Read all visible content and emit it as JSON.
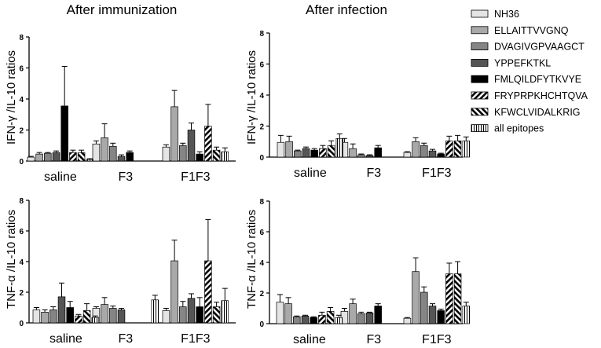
{
  "figure": {
    "col_titles": [
      "After immunization",
      "After infection"
    ],
    "ylabel_ifn": "IFN-γ /IL-10 ratios",
    "ylabel_tnf": "TNF-α /IL-10 ratios"
  },
  "legend": {
    "position": "right",
    "entries": [
      {
        "label": "NH36",
        "pattern": "light"
      },
      {
        "label": "ELLAITTVVGNQ",
        "pattern": "mid"
      },
      {
        "label": "DVAGIVGPVAAGCT",
        "pattern": "gray"
      },
      {
        "label": "YPPEFKTKL",
        "pattern": "dark"
      },
      {
        "label": "FMLQILDFYTKVYE",
        "pattern": "black"
      },
      {
        "label": "FRYPRPKHCHTQVA",
        "pattern": "diag"
      },
      {
        "label": "KFWCLVIDALKRIG",
        "pattern": "diag2"
      },
      {
        "label": "all epitopes",
        "pattern": "vert"
      }
    ]
  },
  "chart_data": [
    {
      "type": "bar",
      "panel": "A",
      "title": "After immunization",
      "ylabel": "IFN-γ /IL-10 ratios",
      "xlabel": "",
      "ylim": [
        0,
        8
      ],
      "yticks": [
        0,
        2,
        4,
        6,
        8
      ],
      "groups": [
        "saline",
        "F3",
        "F1F3"
      ],
      "series": [
        {
          "name": "NH36",
          "values": [
            0.25,
            1.1,
            0.9
          ],
          "errors": [
            0.05,
            0.2,
            0.15
          ]
        },
        {
          "name": "ELLAITTVVGNQ",
          "values": [
            0.45,
            1.5,
            3.5
          ],
          "errors": [
            0.1,
            0.9,
            1.05
          ]
        },
        {
          "name": "DVAGIVGPVAAGCT",
          "values": [
            0.5,
            0.95,
            1.0
          ],
          "errors": [
            0.05,
            0.2,
            0.15
          ]
        },
        {
          "name": "YPPEFKTKL",
          "values": [
            0.55,
            0.3,
            2.0
          ],
          "errors": [
            0.1,
            0.1,
            0.45
          ]
        },
        {
          "name": "FMLQILDFYTKVYE",
          "values": [
            3.55,
            0.55,
            0.45
          ],
          "errors": [
            2.55,
            0.1,
            0.15
          ]
        },
        {
          "name": "FRYPRPKHCHTQVA",
          "values": [
            0.55,
            0,
            2.25
          ],
          "errors": [
            0.15,
            0,
            1.4
          ]
        },
        {
          "name": "KFWCLVIDALKRIG",
          "values": [
            0.55,
            0,
            0.7
          ],
          "errors": [
            0.15,
            0,
            0.2
          ]
        },
        {
          "name": "all epitopes",
          "values": [
            0.1,
            0,
            0.6
          ],
          "errors": [
            0.05,
            0,
            0.25
          ]
        }
      ]
    },
    {
      "type": "bar",
      "panel": "B",
      "title": "After infection",
      "ylabel": "IFN-γ /IL-10 ratios",
      "xlabel": "",
      "ylim": [
        0,
        8
      ],
      "yticks": [
        0,
        2,
        4,
        6,
        8
      ],
      "groups": [
        "saline",
        "F3",
        "F1F3"
      ],
      "series": [
        {
          "name": "NH36",
          "values": [
            0.95,
            0.95,
            0.3
          ],
          "errors": [
            0.45,
            0.25,
            0.05
          ]
        },
        {
          "name": "ELLAITTVVGNQ",
          "values": [
            1.0,
            0.55,
            1.0
          ],
          "errors": [
            0.35,
            0.3,
            0.25
          ]
        },
        {
          "name": "DVAGIVGPVAAGCT",
          "values": [
            0.4,
            0.15,
            0.75
          ],
          "errors": [
            0.05,
            0.05,
            0.15
          ]
        },
        {
          "name": "YPPEFKTKL",
          "values": [
            0.55,
            0.1,
            0.4
          ],
          "errors": [
            0.1,
            0.05,
            0.1
          ]
        },
        {
          "name": "FMLQILDFYTKVYE",
          "values": [
            0.45,
            0.6,
            0.2
          ],
          "errors": [
            0.1,
            0.15,
            0.05
          ]
        },
        {
          "name": "FRYPRPKHCHTQVA",
          "values": [
            0.55,
            0,
            1.05
          ],
          "errors": [
            0.2,
            0,
            0.3
          ]
        },
        {
          "name": "KFWCLVIDALKRIG",
          "values": [
            0.75,
            0,
            1.05
          ],
          "errors": [
            0.3,
            0,
            0.35
          ]
        },
        {
          "name": "all epitopes",
          "values": [
            1.2,
            0,
            1.05
          ],
          "errors": [
            0.3,
            0,
            0.25
          ]
        }
      ]
    },
    {
      "type": "bar",
      "panel": "C",
      "title": "",
      "ylabel": "TNF-α /IL-10 ratios",
      "xlabel": "",
      "ylim": [
        0,
        8
      ],
      "yticks": [
        0,
        2,
        4,
        6,
        8
      ],
      "groups": [
        "saline",
        "F3",
        "F1F3"
      ],
      "series": [
        {
          "name": "NH36",
          "values": [
            0.85,
            0.95,
            0.8
          ],
          "errors": [
            0.15,
            0.1,
            0.15
          ]
        },
        {
          "name": "ELLAITTVVGNQ",
          "values": [
            0.7,
            1.2,
            4.05
          ],
          "errors": [
            0.15,
            0.45,
            1.35
          ]
        },
        {
          "name": "DVAGIVGPVAAGCT",
          "values": [
            0.85,
            0.95,
            1.05
          ],
          "errors": [
            0.2,
            0.15,
            0.35
          ]
        },
        {
          "name": "YPPEFKTKL",
          "values": [
            1.7,
            0.85,
            1.6
          ],
          "errors": [
            0.9,
            0.1,
            0.3
          ]
        },
        {
          "name": "FMLQILDFYTKVYE",
          "values": [
            1.0,
            0,
            1.05
          ],
          "errors": [
            0.4,
            0,
            0.6
          ]
        },
        {
          "name": "FRYPRPKHCHTQVA",
          "values": [
            0.45,
            0,
            4.05
          ],
          "errors": [
            0.1,
            0,
            2.7
          ]
        },
        {
          "name": "KFWCLVIDALKRIG",
          "values": [
            0.8,
            0,
            1.05
          ],
          "errors": [
            0.45,
            0,
            0.3
          ]
        },
        {
          "name": "all epitopes",
          "values": [
            0.35,
            1.5,
            1.45
          ],
          "errors": [
            0.1,
            0.3,
            0.8
          ]
        }
      ]
    },
    {
      "type": "bar",
      "panel": "D",
      "title": "",
      "ylabel": "TNF-α /IL-10 ratios",
      "xlabel": "",
      "ylim": [
        0,
        8
      ],
      "yticks": [
        0,
        2,
        4,
        6,
        8
      ],
      "groups": [
        "saline",
        "F3",
        "F1F3"
      ],
      "series": [
        {
          "name": "NH36",
          "values": [
            1.4,
            0.8,
            0.35
          ],
          "errors": [
            0.5,
            0.2,
            0.05
          ]
        },
        {
          "name": "ELLAITTVVGNQ",
          "values": [
            1.3,
            1.3,
            3.4
          ],
          "errors": [
            0.4,
            0.3,
            0.9
          ]
        },
        {
          "name": "DVAGIVGPVAAGCT",
          "values": [
            0.45,
            0.65,
            2.05
          ],
          "errors": [
            0.05,
            0.1,
            0.35
          ]
        },
        {
          "name": "YPPEFKTKL",
          "values": [
            0.5,
            0.7,
            1.15
          ],
          "errors": [
            0.05,
            0.05,
            0.15
          ]
        },
        {
          "name": "FMLQILDFYTKVYE",
          "values": [
            0.4,
            1.15,
            0.85
          ],
          "errors": [
            0.05,
            0.15,
            0.1
          ]
        },
        {
          "name": "FRYPRPKHCHTQVA",
          "values": [
            0.55,
            0,
            3.25
          ],
          "errors": [
            0.2,
            0,
            0.7
          ]
        },
        {
          "name": "KFWCLVIDALKRIG",
          "values": [
            0.8,
            0,
            3.25
          ],
          "errors": [
            0.25,
            0,
            0.8
          ]
        },
        {
          "name": "all epitopes",
          "values": [
            0.4,
            0,
            1.15
          ],
          "errors": [
            0.15,
            0,
            0.25
          ]
        }
      ]
    }
  ]
}
